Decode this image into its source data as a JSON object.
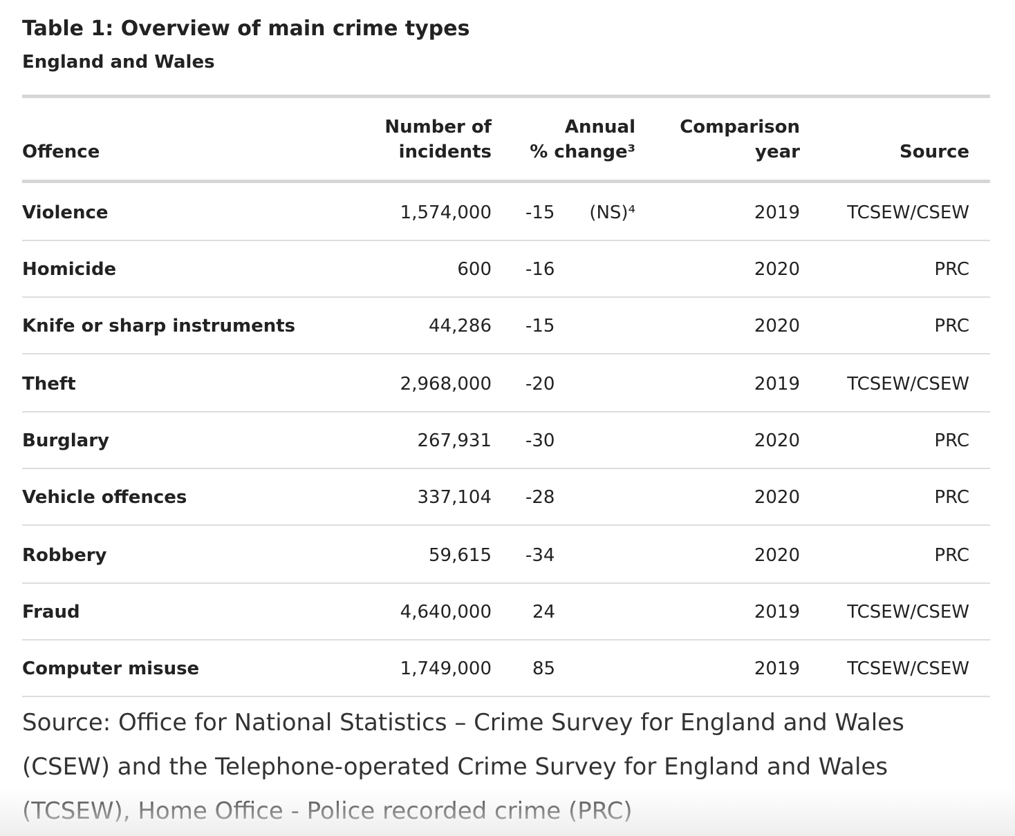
{
  "title": "Table 1: Overview of main crime types",
  "subtitle": "England and Wales",
  "headers": {
    "offence": "Offence",
    "incidents_1": "Number of",
    "incidents_2": "incidents",
    "change_1": "Annual",
    "change_2": "% change³",
    "year_1": "Comparison",
    "year_2": "year",
    "source": "Source"
  },
  "rows": [
    {
      "offence": "Violence",
      "incidents": "1,574,000",
      "change": "-15",
      "note": "(NS)⁴",
      "year": "2019",
      "source": "TCSEW/CSEW"
    },
    {
      "offence": "Homicide",
      "incidents": "600",
      "change": "-16",
      "note": "",
      "year": "2020",
      "source": "PRC"
    },
    {
      "offence": "Knife or sharp instruments",
      "incidents": "44,286",
      "change": "-15",
      "note": "",
      "year": "2020",
      "source": "PRC"
    },
    {
      "offence": "Theft",
      "incidents": "2,968,000",
      "change": "-20",
      "note": "",
      "year": "2019",
      "source": "TCSEW/CSEW"
    },
    {
      "offence": "Burglary",
      "incidents": "267,931",
      "change": "-30",
      "note": "",
      "year": "2020",
      "source": "PRC"
    },
    {
      "offence": "Vehicle offences",
      "incidents": "337,104",
      "change": "-28",
      "note": "",
      "year": "2020",
      "source": "PRC"
    },
    {
      "offence": "Robbery",
      "incidents": "59,615",
      "change": "-34",
      "note": "",
      "year": "2020",
      "source": "PRC"
    },
    {
      "offence": "Fraud",
      "incidents": "4,640,000",
      "change": "24",
      "note": "",
      "year": "2019",
      "source": "TCSEW/CSEW"
    },
    {
      "offence": "Computer misuse",
      "incidents": "1,749,000",
      "change": "85",
      "note": "",
      "year": "2019",
      "source": "TCSEW/CSEW"
    }
  ],
  "source_note": "Source: Office for National Statistics – Crime Survey for England and Wales (CSEW) and the Telephone-operated Crime Survey for England and Wales (TCSEW), Home Office - Police recorded crime (PRC)"
}
